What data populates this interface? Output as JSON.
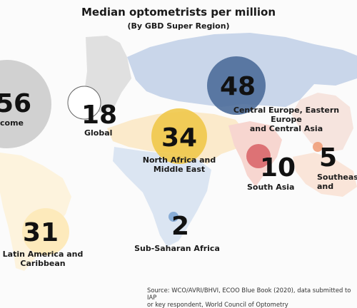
{
  "title": "Median optometrists per million",
  "subtitle": "(By GBD Super Region)",
  "colors": {
    "high_income": "#c9c9c9",
    "global": "#ffffff",
    "central_europe": "#4d6d9a",
    "north_africa": "#f0c84a",
    "south_asia": "#d9676a",
    "southeast_asia": "#ef9f7a",
    "latin_america": "#fde9b8",
    "sub_saharan": "#7fa6d4"
  },
  "regions": [
    {
      "id": "high-income",
      "value": "56",
      "label": "come"
    },
    {
      "id": "global",
      "value": "18",
      "label": "Global"
    },
    {
      "id": "central-europe",
      "value": "48",
      "label": "Central Europe, Eastern Europe\nand Central Asia"
    },
    {
      "id": "north-africa",
      "value": "34",
      "label": "North Africa and\nMiddle East"
    },
    {
      "id": "south-asia",
      "value": "10",
      "label": "South Asia"
    },
    {
      "id": "southeast-asia",
      "value": "5",
      "label": "Southeas\nand"
    },
    {
      "id": "latin-america",
      "value": "31",
      "label": "Latin America and\nCaribbean"
    },
    {
      "id": "sub-saharan",
      "value": "2",
      "label": "Sub-Saharan Africa"
    }
  ],
  "source": "Source: WCO/AVRI/BHVI, ECOO Blue Book (2020), data submitted to IAP\nor key respondent, World Council of Optometry"
}
